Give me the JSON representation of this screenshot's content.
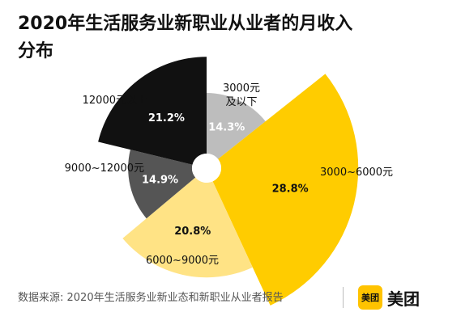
{
  "title": "2020年生活服务业新职业从业者的月收入分布",
  "source": "数据来源: 2020年生活服务业新业态和新职业从业者报告",
  "brand": {
    "badge_text": "美团",
    "name": "美团",
    "color": "#FFC300"
  },
  "chart_data": {
    "type": "pie",
    "variant": "rose",
    "categories": [
      "3000元及以下",
      "3000~6000元",
      "6000~9000元",
      "9000~12000元",
      "12000元以上"
    ],
    "values": [
      14.3,
      28.8,
      20.8,
      14.9,
      21.2
    ],
    "value_labels": [
      "14.3%",
      "28.8%",
      "20.8%",
      "14.9%",
      "21.2%"
    ],
    "colors": [
      "#BDBDBD",
      "#FFCC00",
      "#FFE385",
      "#555555",
      "#111111"
    ],
    "value_label_colors": [
      "#ffffff",
      "#111111",
      "#111111",
      "#ffffff",
      "#ffffff"
    ]
  }
}
